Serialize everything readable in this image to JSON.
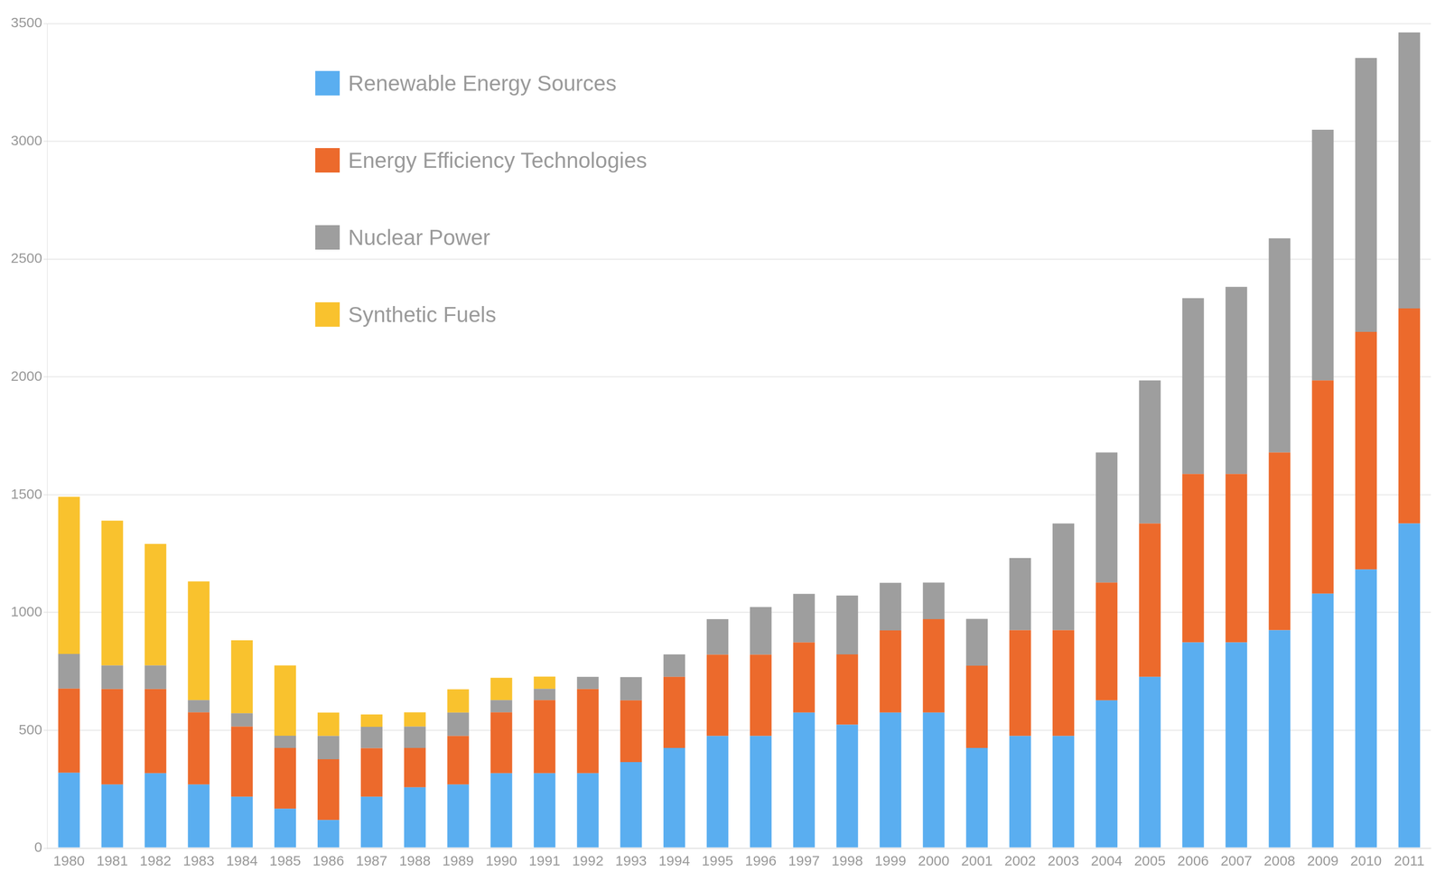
{
  "chart_data": {
    "type": "bar",
    "stacked": true,
    "grid": true,
    "legend": "upper left",
    "categories": [
      "1980",
      "1981",
      "1982",
      "1983",
      "1984",
      "1985",
      "1986",
      "1987",
      "1988",
      "1989",
      "1990",
      "1991",
      "1992",
      "1993",
      "1994",
      "1995",
      "1996",
      "1997",
      "1998",
      "1999",
      "2000",
      "2001",
      "2002",
      "2003",
      "2004",
      "2005",
      "2006",
      "2007",
      "2008",
      "2009",
      "2010",
      "2011"
    ],
    "ylim": [
      0,
      3500
    ],
    "yticks": [
      0,
      500,
      1000,
      1500,
      2000,
      2500,
      3000,
      3500
    ],
    "series": [
      {
        "name": "Renewable Energy Sources",
        "color": "#5aaef0",
        "values": [
          320,
          270,
          318,
          270,
          218,
          167,
          119,
          218,
          258,
          270,
          318,
          318,
          318,
          365,
          425,
          476,
          476,
          575,
          524,
          575,
          575,
          425,
          476,
          476,
          627,
          727,
          873,
          873,
          925,
          1080,
          1183,
          1378
        ]
      },
      {
        "name": "Energy Efficiency Technologies",
        "color": "#ec6a2c",
        "values": [
          357,
          405,
          357,
          306,
          298,
          258,
          258,
          206,
          167,
          206,
          258,
          310,
          357,
          262,
          302,
          345,
          345,
          298,
          298,
          349,
          397,
          349,
          449,
          449,
          500,
          651,
          715,
          715,
          754,
          905,
          1008,
          913
        ]
      },
      {
        "name": "Nuclear Power",
        "color": "#9e9e9e",
        "values": [
          147,
          100,
          100,
          52,
          56,
          52,
          99,
          91,
          91,
          99,
          52,
          48,
          52,
          99,
          95,
          151,
          202,
          206,
          250,
          202,
          155,
          199,
          306,
          453,
          552,
          607,
          746,
          794,
          909,
          1064,
          1163,
          1171
        ]
      },
      {
        "name": "Synthetic Fuels",
        "color": "#f9c22e",
        "values": [
          667,
          615,
          516,
          504,
          310,
          298,
          99,
          52,
          60,
          99,
          95,
          52,
          0,
          0,
          0,
          0,
          0,
          0,
          0,
          0,
          0,
          0,
          0,
          0,
          0,
          0,
          0,
          0,
          0,
          0,
          0,
          0
        ]
      }
    ]
  }
}
